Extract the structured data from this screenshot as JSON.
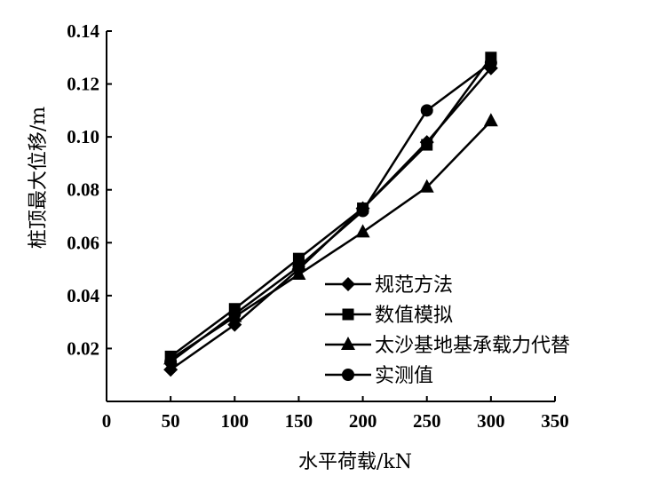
{
  "chart_data": {
    "type": "line",
    "title": "",
    "xlabel": "水平荷载/kN",
    "ylabel": "桩顶最大位移/m",
    "xlim": [
      0,
      350
    ],
    "ylim": [
      0,
      0.14
    ],
    "xticks": [
      "0",
      "50",
      "100",
      "150",
      "200",
      "250",
      "300",
      "350"
    ],
    "yticks": [
      "0.02",
      "0.04",
      "0.06",
      "0.08",
      "0.10",
      "0.12",
      "0.14"
    ],
    "grid": false,
    "legend_position": "lower-right",
    "x": [
      50,
      100,
      150,
      200,
      250,
      300
    ],
    "series": [
      {
        "name": "规范方法",
        "marker": "diamond",
        "values": [
          0.012,
          0.029,
          0.05,
          0.073,
          0.098,
          0.126
        ]
      },
      {
        "name": "数值模拟",
        "marker": "square",
        "values": [
          0.017,
          0.035,
          0.054,
          0.073,
          0.097,
          0.13
        ]
      },
      {
        "name": "太沙基地基承载力代替",
        "marker": "triangle",
        "values": [
          0.016,
          0.032,
          0.048,
          0.064,
          0.081,
          0.106
        ]
      },
      {
        "name": "实测值",
        "marker": "circle",
        "values": [
          0.015,
          0.033,
          0.051,
          0.072,
          0.11,
          0.128
        ]
      }
    ]
  }
}
